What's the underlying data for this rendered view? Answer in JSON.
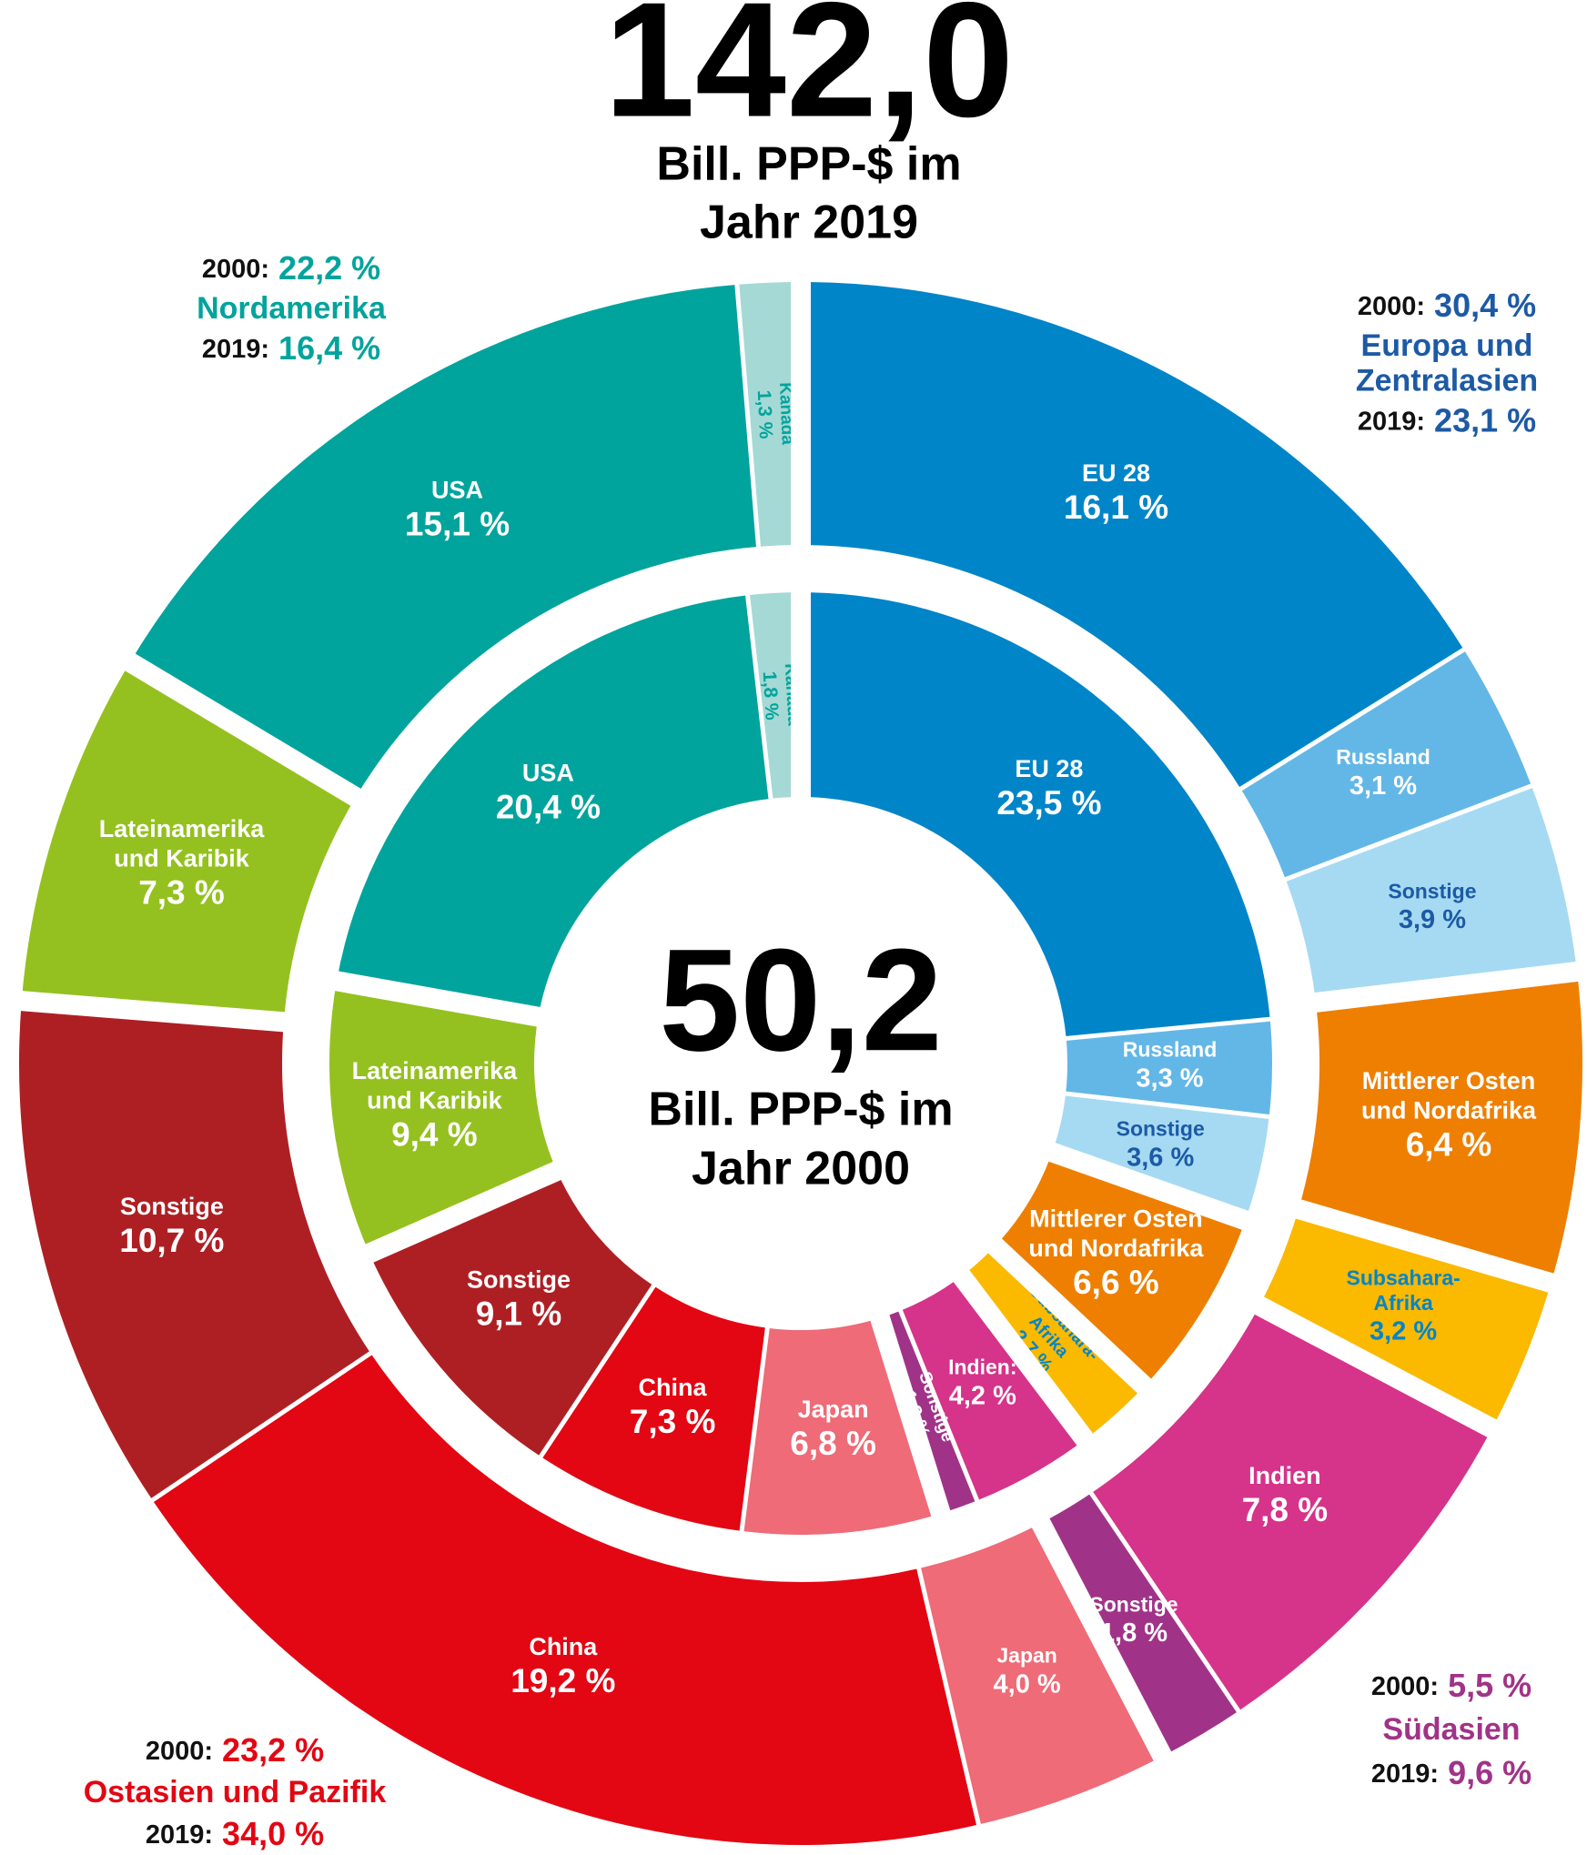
{
  "chart_data": {
    "type": "donut",
    "outer_total": "142,0",
    "outer_caption": [
      "Bill. PPP-$ im",
      "Jahr 2019"
    ],
    "inner_total": "50,2",
    "inner_caption": [
      "Bill. PPP-$ im",
      "Jahr 2000"
    ],
    "series_names": [
      "2000:",
      "2019:"
    ],
    "regions": [
      {
        "name": [
          "Europa und",
          "Zentralasien"
        ],
        "color": "#1d5aa5",
        "values": [
          30.4,
          23.1
        ],
        "value_labels": [
          "30,4 %",
          "23,1 %"
        ],
        "segments": [
          {
            "color": "#0085c9",
            "labels": [
              [
                "EU 28"
              ],
              [
                "EU 28"
              ]
            ],
            "values": [
              23.5,
              16.1
            ],
            "value_labels": [
              "23,5 %",
              "16,1 %"
            ]
          },
          {
            "color": "#63b7e6",
            "labels": [
              [
                "Russland"
              ],
              [
                "Russland"
              ]
            ],
            "values": [
              3.3,
              3.1
            ],
            "value_labels": [
              "3,3 %",
              "3,1 %"
            ]
          },
          {
            "color": "#a6daf3",
            "labels": [
              [
                "Sonstige"
              ],
              [
                "Sonstige"
              ]
            ],
            "values": [
              3.6,
              3.9
            ],
            "value_labels": [
              "3,6 %",
              "3,9 %"
            ]
          }
        ]
      },
      {
        "segments": [
          {
            "color": "#ee7f00",
            "labels": [
              [
                "Mittlerer Osten",
                "und Nordafrika"
              ],
              [
                "Mittlerer Osten",
                "und Nordafrika"
              ]
            ],
            "values": [
              6.6,
              6.4
            ],
            "value_labels": [
              "6,6 %",
              "6,4 %"
            ]
          }
        ]
      },
      {
        "segments": [
          {
            "color": "#fbb900",
            "labels": [
              [
                "Subsahara-",
                "Afrika"
              ],
              [
                "Subsahara-",
                "Afrika"
              ]
            ],
            "values": [
              2.7,
              3.2
            ],
            "value_labels": [
              "2,7 %",
              "3,2 %"
            ]
          }
        ]
      },
      {
        "name": [
          "Südasien"
        ],
        "color": "#a03388",
        "values": [
          5.5,
          9.6
        ],
        "value_labels": [
          "5,5 %",
          "9,6 %"
        ],
        "segments": [
          {
            "color": "#d6338a",
            "labels": [
              [
                "Indien:"
              ],
              [
                "Indien"
              ]
            ],
            "values": [
              4.2,
              7.8
            ],
            "value_labels": [
              "4,2 %",
              "7,8 %"
            ]
          },
          {
            "color": "#a03388",
            "labels": [
              [
                "Sonstige"
              ],
              [
                "Sonstige"
              ]
            ],
            "values": [
              1.3,
              1.8
            ],
            "value_labels": [
              "1,3 %",
              "1,8 %"
            ]
          }
        ]
      },
      {
        "name": [
          "Ostasien und Pazifik"
        ],
        "color": "#e30613",
        "values": [
          23.2,
          34.0
        ],
        "value_labels": [
          "23,2 %",
          "34,0 %"
        ],
        "segments": [
          {
            "color": "#ee6b77",
            "labels": [
              [
                "Japan"
              ],
              [
                "Japan"
              ]
            ],
            "values": [
              6.8,
              4.0
            ],
            "value_labels": [
              "6,8 %",
              "4,0 %"
            ]
          },
          {
            "color": "#e30613",
            "labels": [
              [
                "China"
              ],
              [
                "China"
              ]
            ],
            "values": [
              7.3,
              19.2
            ],
            "value_labels": [
              "7,3 %",
              "19,2 %"
            ]
          },
          {
            "color": "#ae1f23",
            "labels": [
              [
                "Sonstige"
              ],
              [
                "Sonstige"
              ]
            ],
            "values": [
              9.1,
              10.7
            ],
            "value_labels": [
              "9,1 %",
              "10,7 %"
            ]
          }
        ]
      },
      {
        "segments": [
          {
            "color": "#94c11f",
            "labels": [
              [
                "Lateinamerika",
                "und Karibik"
              ],
              [
                "Lateinamerika",
                "und Karibik"
              ]
            ],
            "values": [
              9.4,
              7.3
            ],
            "value_labels": [
              "9,4 %",
              "7,3 %"
            ]
          }
        ]
      },
      {
        "name": [
          "Nordamerika"
        ],
        "color": "#00a49c",
        "values": [
          22.2,
          16.4
        ],
        "value_labels": [
          "22,2 %",
          "16,4 %"
        ],
        "segments": [
          {
            "color": "#00a49c",
            "labels": [
              [
                "USA"
              ],
              [
                "USA"
              ]
            ],
            "values": [
              20.4,
              15.1
            ],
            "value_labels": [
              "20,4 %",
              "15,1 %"
            ]
          },
          {
            "color": "#a5d9d5",
            "labels": [
              [
                "Kanada"
              ],
              [
                "Kanada"
              ]
            ],
            "values": [
              1.8,
              1.3
            ],
            "value_labels": [
              "1,8 %",
              "1,3 %"
            ]
          }
        ]
      }
    ]
  }
}
